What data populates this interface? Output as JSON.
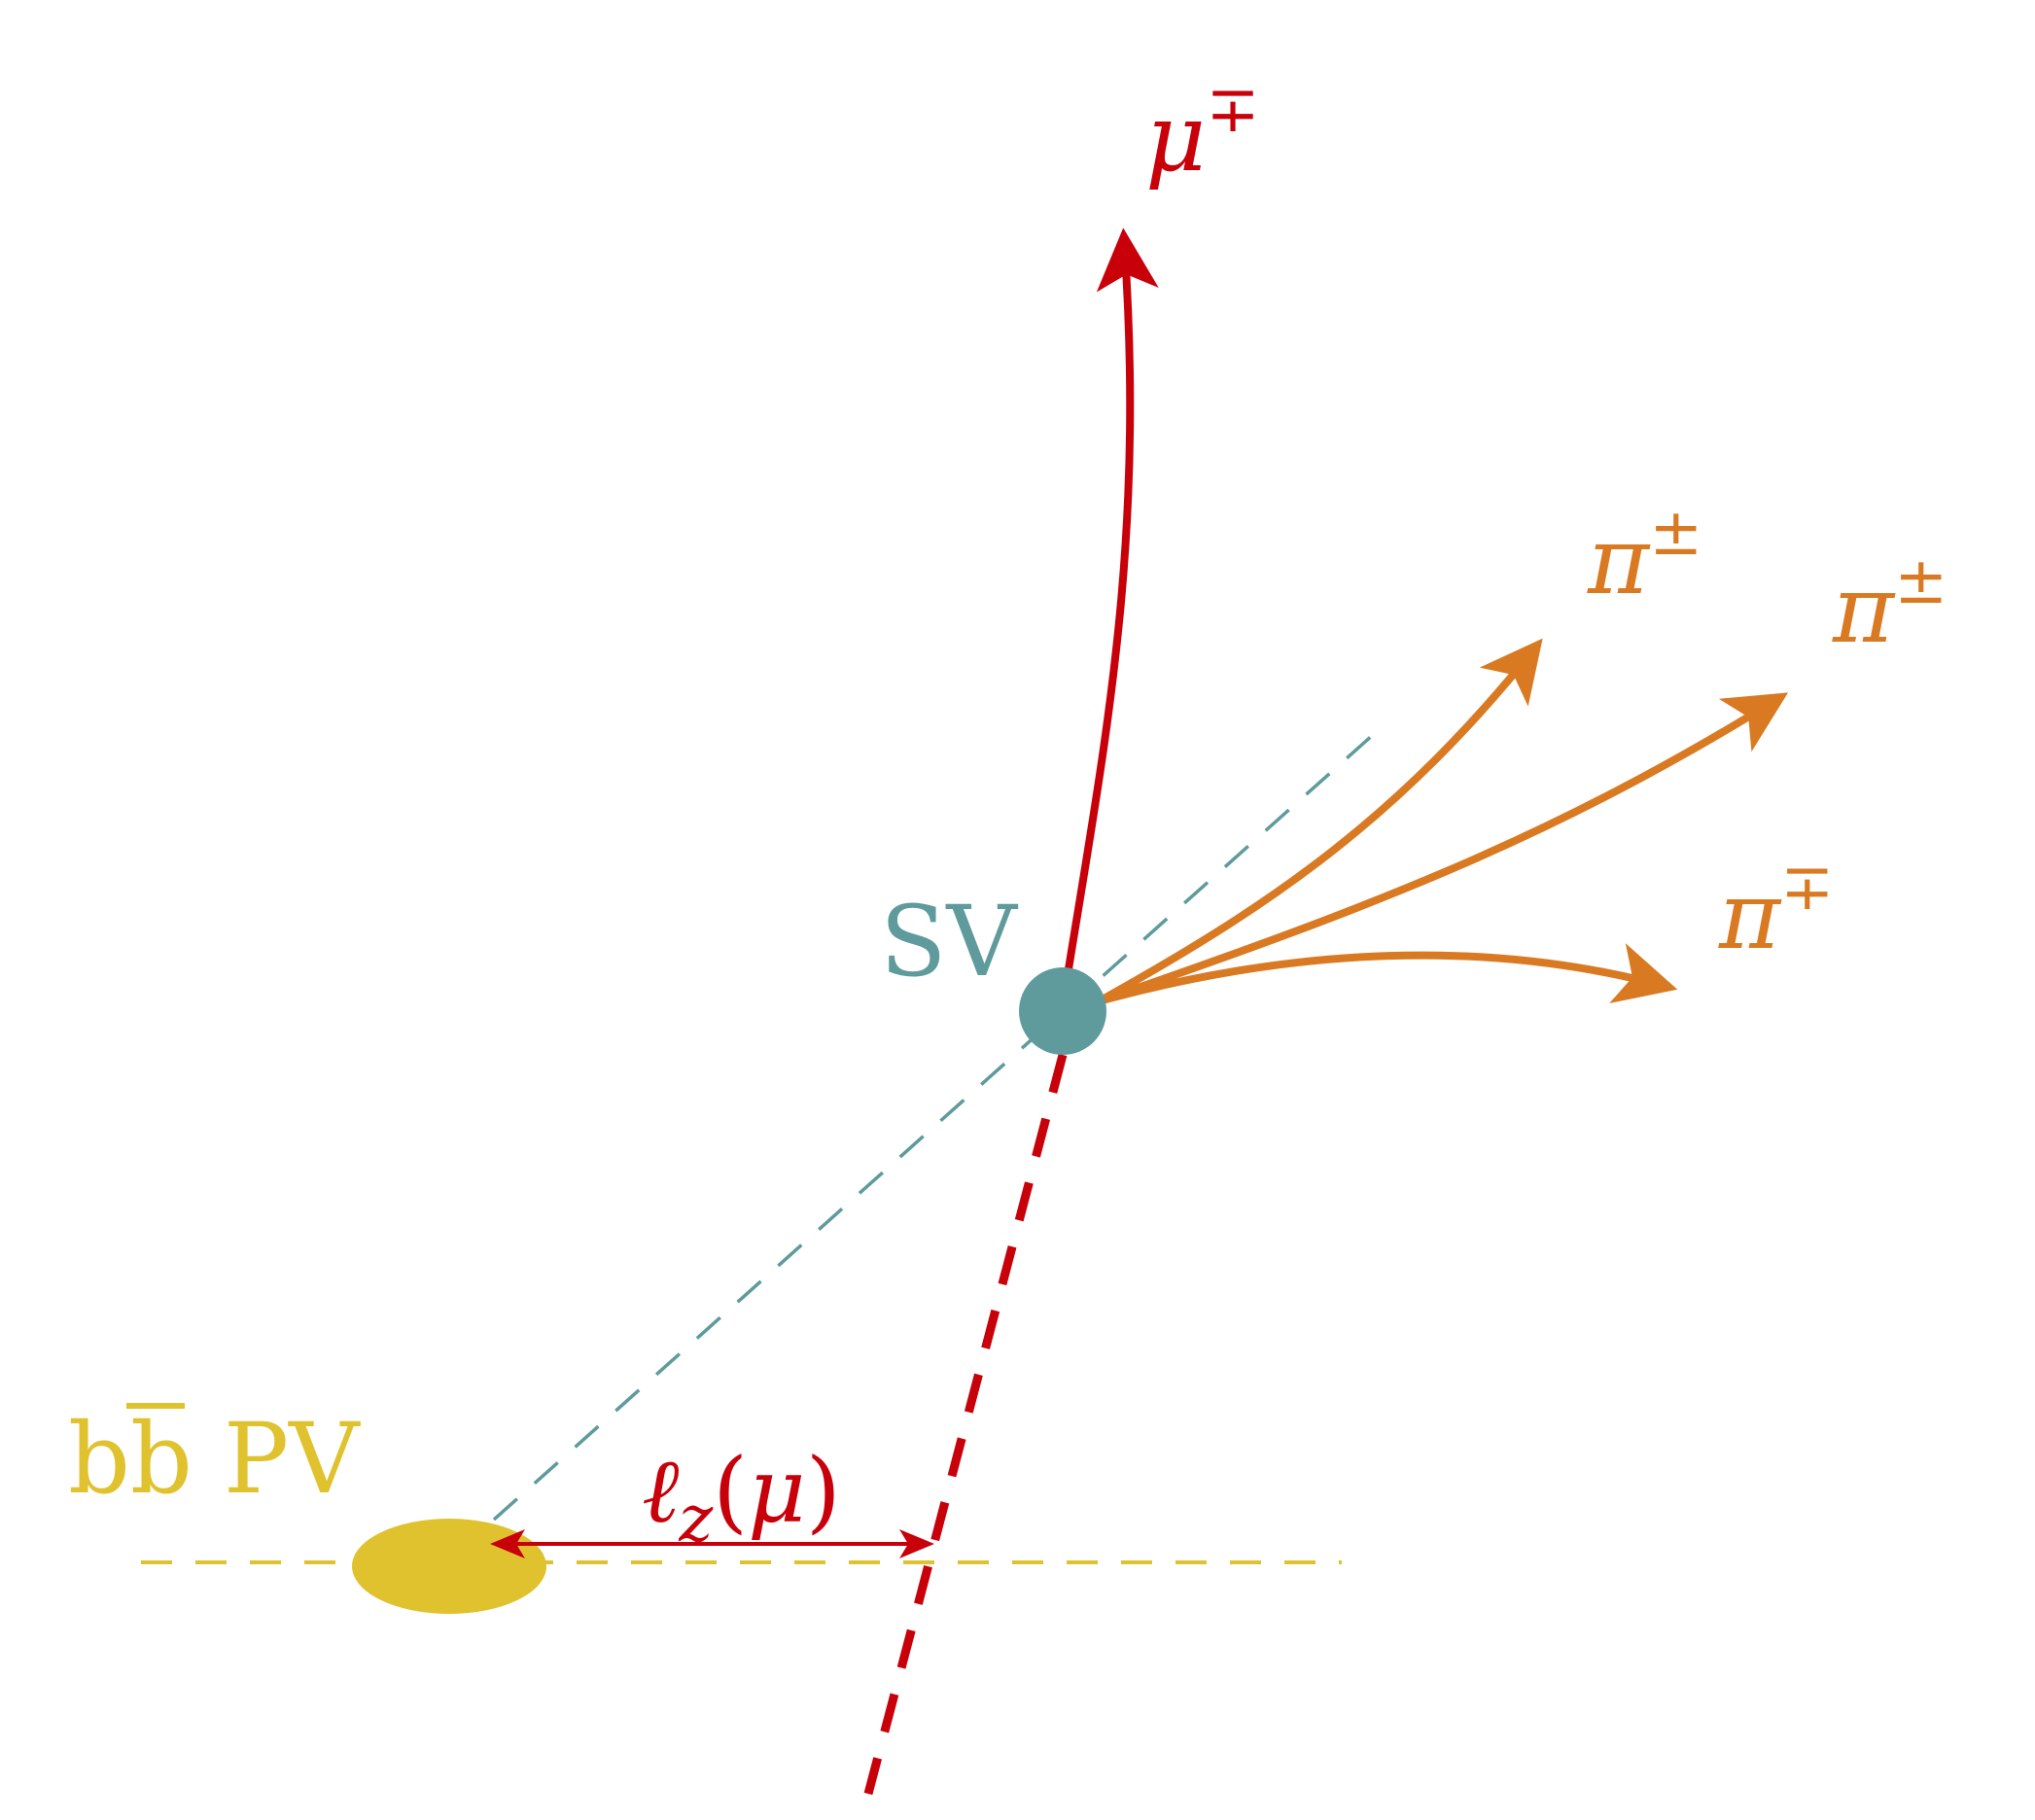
{
  "colors": {
    "muon": "#c8000a",
    "pion": "#d97a22",
    "sv": "#5f9b9c",
    "pv": "#e0c22e",
    "background": "#ffffff"
  },
  "labels": {
    "muon": {
      "symbol": "μ",
      "charge": "∓"
    },
    "pion1": {
      "symbol": "π",
      "charge": "±"
    },
    "pion2": {
      "symbol": "π",
      "charge": "±"
    },
    "pion3": {
      "symbol": "π",
      "charge": "∓"
    },
    "sv": "SV",
    "pv": {
      "b": "b",
      "bbar": "b",
      "suffix": " PV"
    },
    "distance": {
      "ell": "ℓ",
      "sub": "z",
      "open": "(",
      "mu": "μ",
      "close": ")"
    }
  }
}
